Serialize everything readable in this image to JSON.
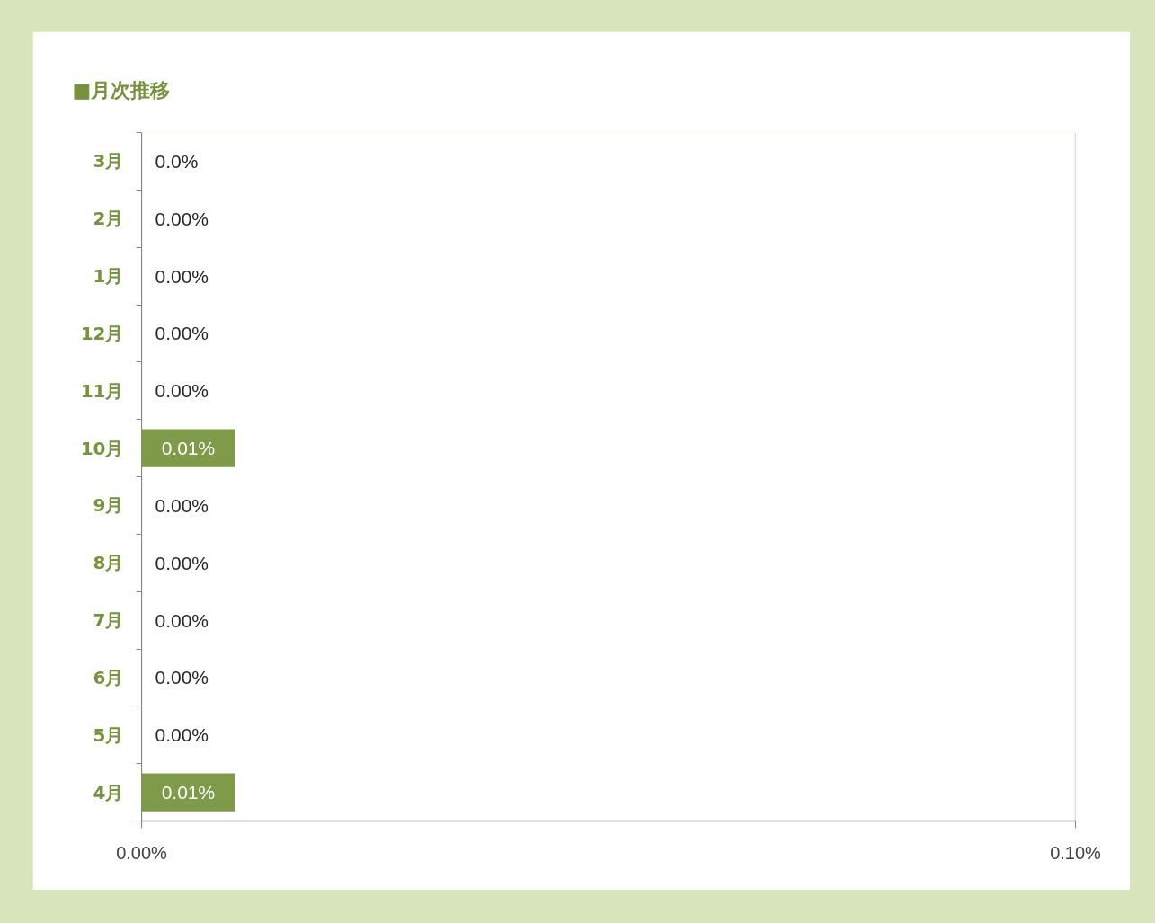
{
  "chart_data": {
    "type": "bar",
    "orientation": "horizontal",
    "title": "■月次推移",
    "categories": [
      "3月",
      "2月",
      "1月",
      "12月",
      "11月",
      "10月",
      "9月",
      "8月",
      "7月",
      "6月",
      "5月",
      "4月"
    ],
    "values": [
      0,
      0,
      0,
      0,
      0,
      0.01,
      0,
      0,
      0,
      0,
      0,
      0.01
    ],
    "value_labels": [
      "0.0%",
      "0.00%",
      "0.00%",
      "0.00%",
      "0.00%",
      "0.01%",
      "0.00%",
      "0.00%",
      "0.00%",
      "0.00%",
      "0.00%",
      "0.01%"
    ],
    "color": "#7f9a48",
    "xlim": [
      0,
      0.1
    ],
    "xticks": [
      {
        "value": 0,
        "label": "0.00%"
      },
      {
        "value": 0.1,
        "label": "0.10%"
      }
    ],
    "grid": "x"
  }
}
